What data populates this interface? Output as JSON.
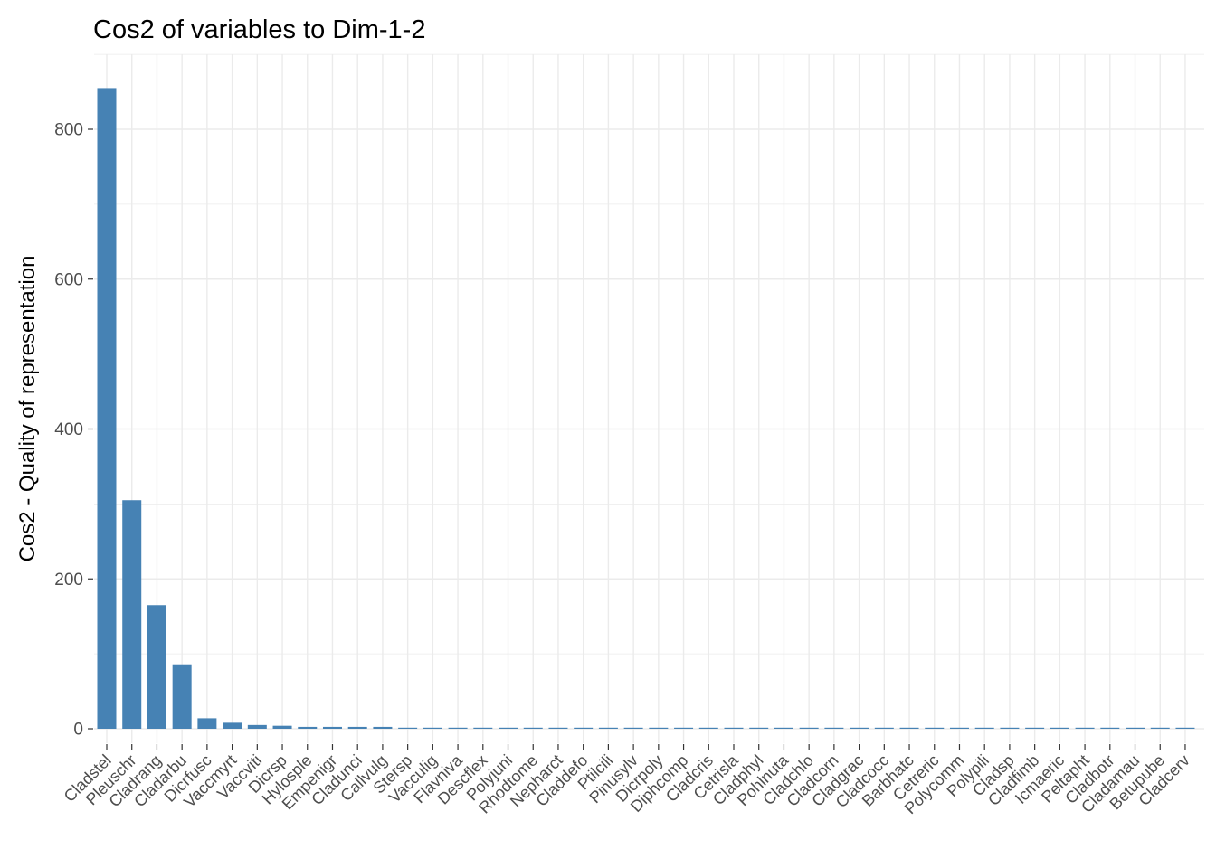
{
  "chart_data": {
    "type": "bar",
    "title": "Cos2 of variables to Dim-1-2",
    "xlabel": "",
    "ylabel": "Cos2 - Quality of representation",
    "ylim": [
      -20,
      890
    ],
    "yticks": [
      0,
      200,
      400,
      600,
      800
    ],
    "grid": true,
    "bar_color": "#4682B4",
    "grid_color": "#EBEBEB",
    "tick_color": "#4D4D4D",
    "categories": [
      "Cladstel",
      "Pleuschr",
      "Cladrang",
      "Cladarbu",
      "Dicrfusc",
      "Vaccmyrt",
      "Vaccviti",
      "Dicrsp",
      "Hylosple",
      "Empenigr",
      "Cladunci",
      "Callvulg",
      "Stersp",
      "Vacculig",
      "Flavniva",
      "Descflex",
      "Polyjuni",
      "Rhodtome",
      "Nepharct",
      "Claddefo",
      "Ptilcili",
      "Pinusylv",
      "Dicrpoly",
      "Diphcomp",
      "Cladcris",
      "Cetrisla",
      "Cladphyl",
      "Pohlnuta",
      "Cladchlo",
      "Cladcorn",
      "Cladgrac",
      "Cladcocc",
      "Barbhatc",
      "Cetreric",
      "Polycomm",
      "Polypili",
      "Cladsp",
      "Cladfimb",
      "Icmaeric",
      "Peltapht",
      "Cladbotr",
      "Cladamau",
      "Betupube",
      "Cladcerv"
    ],
    "values": [
      855,
      305,
      165,
      86,
      14,
      8,
      5,
      4,
      2.5,
      2.5,
      2.5,
      2.5,
      1,
      1,
      1,
      1,
      1,
      1,
      1,
      1,
      1,
      1,
      1,
      1,
      1,
      1,
      1,
      1,
      1,
      1,
      1,
      1,
      1,
      1,
      1,
      1,
      1,
      1,
      1,
      1,
      1,
      1,
      1,
      1
    ]
  }
}
